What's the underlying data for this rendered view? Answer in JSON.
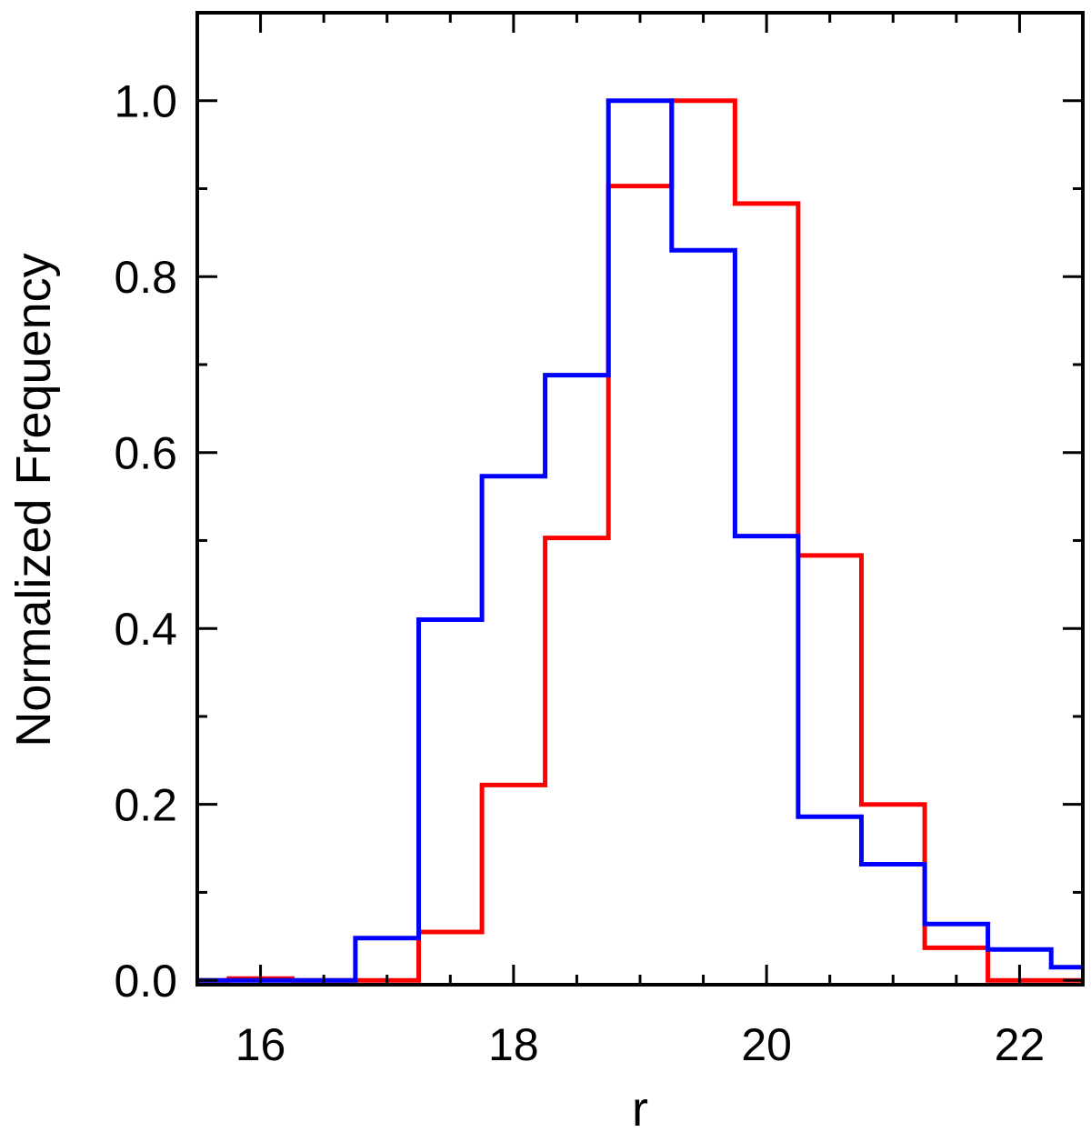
{
  "chart_data": {
    "type": "histogram",
    "title": "",
    "xlabel": "r",
    "ylabel": "Normalized Frequency",
    "xlim": [
      15.5,
      22.5
    ],
    "ylim": [
      -0.005,
      1.1
    ],
    "x_ticks": [
      16,
      18,
      20,
      22
    ],
    "x_tick_labels": [
      "16",
      "18",
      "20",
      "22"
    ],
    "y_ticks": [
      0.0,
      0.2,
      0.4,
      0.6,
      0.8,
      1.0
    ],
    "y_tick_labels": [
      "0.0",
      "0.2",
      "0.4",
      "0.6",
      "0.8",
      "1.0"
    ],
    "x_minor_step": 0.5,
    "y_minor_step": 0.1,
    "grid": false,
    "bin_edges": [
      15.25,
      15.75,
      16.25,
      16.75,
      17.25,
      17.75,
      18.25,
      18.75,
      19.25,
      19.75,
      20.25,
      20.75,
      21.25,
      21.75,
      22.25,
      22.75
    ],
    "series": [
      {
        "color": "#ff0000",
        "values": [
          0.0,
          0.002,
          0.0,
          0.0,
          0.055,
          0.222,
          0.503,
          0.903,
          1.0,
          0.883,
          0.483,
          0.2,
          0.037,
          0.0,
          0.0
        ]
      },
      {
        "color": "#0000ff",
        "values": [
          0.0,
          0.0,
          0.0,
          0.048,
          0.41,
          0.573,
          0.688,
          1.0,
          0.83,
          0.505,
          0.186,
          0.132,
          0.064,
          0.035,
          0.015
        ]
      }
    ]
  }
}
